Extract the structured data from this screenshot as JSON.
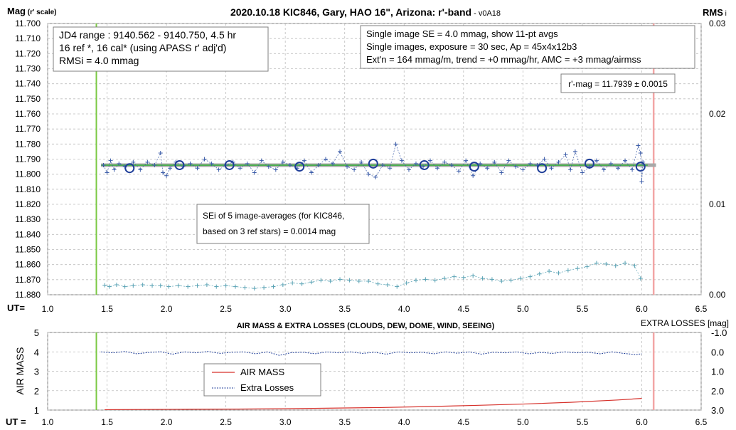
{
  "chart_data": [
    {
      "type": "scatter",
      "title": "2020.10.18 KIC846, Gary, HAO 16\", Arizona: r'-band",
      "version": "v0A18",
      "ylabel_main": "Mag",
      "ylabel_sub": "(r' scale)",
      "y2label_main": "RMS",
      "y2label_sub": "i",
      "xlabel": "UT=",
      "xlim": [
        1.0,
        6.5
      ],
      "x_ticks": [
        "1.0",
        "1.5",
        "2.0",
        "2.5",
        "3.0",
        "3.5",
        "4.0",
        "4.5",
        "5.0",
        "5.5",
        "6.0",
        "6.5"
      ],
      "ylim": [
        11.88,
        11.7
      ],
      "y_ticks": [
        "11.700",
        "11.710",
        "11.720",
        "11.730",
        "11.740",
        "11.750",
        "11.760",
        "11.770",
        "11.780",
        "11.790",
        "11.800",
        "11.810",
        "11.820",
        "11.830",
        "11.840",
        "11.850",
        "11.860",
        "11.870",
        "11.880"
      ],
      "y2lim": [
        0.0,
        0.03
      ],
      "y2_ticks": [
        "0.00",
        "0.01",
        "0.02",
        "0.03"
      ],
      "grid": true,
      "markers": {
        "start_ut": 1.41,
        "end_ut": 6.1,
        "start_color": "#7ac943",
        "end_color": "#f2a5a5"
      },
      "fit_line": {
        "x": [
          1.45,
          6.05
        ],
        "y": 11.794,
        "color": "#4caf50"
      },
      "reference_band": {
        "y": 11.794,
        "color": "#a8a8a8"
      },
      "info_box_left": [
        "JD4 range : 9140.562 - 9140.750,  4.5  hr",
        "16 ref *, 16 cal* (using APASS r' adj'd)",
        "RMSi = 4.0 mmag"
      ],
      "info_box_right": [
        "Single image SE = 4.0 mmag, show  11-pt avgs",
        "Single images, exposure = 30 sec, Ap = 45x4x12b3",
        "Ext'n = 164 mmag/m, trend =  +0 mmag/hr, AMC = +3 mmag/airmss"
      ],
      "result_box": "r'-mag = 11.7939 ± 0.0015",
      "sei_box": [
        "SEi of 5 image-averages (for KIC846,",
        "based on 3 ref stars) = 0.0014 mag"
      ],
      "series": [
        {
          "style": "averages",
          "color": "#1f3e99",
          "x": [
            1.69,
            2.11,
            2.53,
            3.12,
            3.74,
            4.17,
            4.59,
            5.16,
            5.56,
            5.99
          ],
          "y": [
            11.796,
            11.794,
            11.794,
            11.795,
            11.793,
            11.794,
            11.795,
            11.796,
            11.793,
            11.795
          ]
        },
        {
          "style": "single-image",
          "color": "#3a5ba8",
          "x": [
            1.47,
            1.5,
            1.53,
            1.56,
            1.6,
            1.65,
            1.72,
            1.78,
            1.84,
            1.9,
            1.95,
            1.97,
            2.0,
            2.03,
            2.08,
            2.14,
            2.2,
            2.26,
            2.32,
            2.38,
            2.44,
            2.5,
            2.56,
            2.62,
            2.68,
            2.74,
            2.8,
            2.86,
            2.92,
            2.98,
            3.04,
            3.1,
            3.16,
            3.22,
            3.28,
            3.34,
            3.4,
            3.46,
            3.52,
            3.58,
            3.64,
            3.7,
            3.76,
            3.82,
            3.88,
            3.93,
            3.98,
            4.04,
            4.1,
            4.16,
            4.22,
            4.28,
            4.34,
            4.4,
            4.46,
            4.52,
            4.58,
            4.64,
            4.7,
            4.76,
            4.82,
            4.88,
            4.94,
            5.0,
            5.06,
            5.12,
            5.18,
            5.24,
            5.3,
            5.36,
            5.4,
            5.44,
            5.5,
            5.56,
            5.62,
            5.68,
            5.74,
            5.8,
            5.86,
            5.92,
            5.97,
            5.99,
            6.0,
            6.01
          ],
          "y": [
            11.794,
            11.799,
            11.791,
            11.797,
            11.793,
            11.795,
            11.792,
            11.797,
            11.792,
            11.794,
            11.786,
            11.799,
            11.801,
            11.796,
            11.792,
            11.795,
            11.793,
            11.796,
            11.79,
            11.793,
            11.797,
            11.794,
            11.792,
            11.796,
            11.793,
            11.799,
            11.791,
            11.795,
            11.797,
            11.792,
            11.794,
            11.796,
            11.791,
            11.799,
            11.794,
            11.79,
            11.793,
            11.785,
            11.795,
            11.797,
            11.792,
            11.8,
            11.802,
            11.794,
            11.796,
            11.78,
            11.791,
            11.797,
            11.793,
            11.795,
            11.791,
            11.796,
            11.792,
            11.794,
            11.798,
            11.791,
            11.801,
            11.793,
            11.796,
            11.792,
            11.799,
            11.791,
            11.795,
            11.797,
            11.793,
            11.794,
            11.79,
            11.796,
            11.792,
            11.787,
            11.797,
            11.785,
            11.799,
            11.795,
            11.791,
            11.797,
            11.793,
            11.796,
            11.791,
            11.797,
            11.781,
            11.786,
            11.805,
            11.792
          ]
        },
        {
          "style": "rms",
          "color": "#5ba3b5",
          "x": [
            1.48,
            1.52,
            1.58,
            1.65,
            1.72,
            1.8,
            1.88,
            1.95,
            2.02,
            2.1,
            2.18,
            2.26,
            2.34,
            2.42,
            2.5,
            2.58,
            2.66,
            2.74,
            2.82,
            2.9,
            2.98,
            3.06,
            3.14,
            3.22,
            3.3,
            3.38,
            3.46,
            3.54,
            3.62,
            3.7,
            3.78,
            3.86,
            3.94,
            4.02,
            4.1,
            4.18,
            4.26,
            4.34,
            4.42,
            4.5,
            4.58,
            4.66,
            4.74,
            4.82,
            4.9,
            4.98,
            5.06,
            5.14,
            5.22,
            5.3,
            5.38,
            5.46,
            5.54,
            5.62,
            5.7,
            5.78,
            5.86,
            5.94,
            5.99
          ],
          "y": [
            0.00105,
            0.0009,
            0.0011,
            0.0009,
            0.001,
            0.0011,
            0.001,
            0.001,
            0.0009,
            0.001,
            0.0009,
            0.001,
            0.0011,
            0.0009,
            0.001,
            0.0009,
            0.0008,
            0.0007,
            0.0008,
            0.0009,
            0.0011,
            0.0013,
            0.0012,
            0.0014,
            0.0016,
            0.0015,
            0.0017,
            0.0016,
            0.0015,
            0.0015,
            0.0012,
            0.0011,
            0.0009,
            0.0013,
            0.0016,
            0.0017,
            0.0016,
            0.0018,
            0.002,
            0.0019,
            0.0021,
            0.0018,
            0.0017,
            0.0015,
            0.0016,
            0.0018,
            0.002,
            0.0023,
            0.0026,
            0.0024,
            0.0027,
            0.0029,
            0.0031,
            0.0035,
            0.0034,
            0.0032,
            0.0035,
            0.0032,
            0.0018
          ]
        }
      ]
    },
    {
      "type": "line",
      "title": "AIR MASS & EXTRA LOSSES (CLOUDS, DEW, DOME, WIND, SEEING)",
      "ylabel": "AIR MASS",
      "y2label": "EXTRA LOSSES [mag]",
      "xlabel": "UT =",
      "xlim": [
        1.0,
        6.5
      ],
      "x_ticks": [
        "1.0",
        "1.5",
        "2.0",
        "2.5",
        "3.0",
        "3.5",
        "4.0",
        "4.5",
        "5.0",
        "5.5",
        "6.0",
        "6.5"
      ],
      "ylim": [
        1,
        5
      ],
      "y_ticks": [
        "5",
        "4",
        "3",
        "2",
        "1"
      ],
      "y2lim": [
        3.0,
        -1.0
      ],
      "y2_ticks": [
        "-1.0",
        "0.0",
        "1.0",
        "2.0",
        "3.0"
      ],
      "markers": {
        "start_ut": 1.41,
        "end_ut": 6.1,
        "start_color": "#7ac943",
        "end_color": "#f2a5a5"
      },
      "legend": {
        "position": "center-left",
        "items": [
          "AIR MASS",
          "Extra Losses"
        ]
      },
      "series": [
        {
          "name": "AIR MASS",
          "color": "#d6312b",
          "x": [
            1.48,
            1.8,
            2.2,
            2.6,
            3.0,
            3.4,
            3.8,
            4.2,
            4.6,
            5.0,
            5.4,
            5.8,
            6.0
          ],
          "y": [
            1.02,
            1.03,
            1.04,
            1.05,
            1.07,
            1.1,
            1.13,
            1.18,
            1.24,
            1.31,
            1.4,
            1.52,
            1.6
          ]
        },
        {
          "name": "Extra Losses",
          "color": "#1f3e99",
          "x": [
            1.45,
            1.55,
            1.65,
            1.75,
            1.85,
            1.95,
            2.05,
            2.15,
            2.25,
            2.35,
            2.45,
            2.55,
            2.65,
            2.75,
            2.85,
            2.95,
            3.05,
            3.15,
            3.25,
            3.35,
            3.45,
            3.55,
            3.65,
            3.75,
            3.85,
            3.95,
            4.05,
            4.15,
            4.25,
            4.35,
            4.45,
            4.55,
            4.65,
            4.75,
            4.85,
            4.95,
            5.05,
            5.15,
            5.25,
            5.35,
            5.45,
            5.55,
            5.65,
            5.75,
            5.85,
            5.95,
            6.0
          ],
          "y": [
            0.0,
            0.05,
            -0.02,
            0.1,
            0.03,
            -0.01,
            0.12,
            0.0,
            0.05,
            -0.02,
            0.08,
            0.02,
            0.0,
            0.1,
            0.0,
            0.18,
            0.04,
            0.02,
            0.1,
            0.0,
            0.05,
            0.0,
            0.08,
            0.02,
            0.12,
            0.0,
            0.05,
            0.02,
            0.1,
            0.0,
            0.07,
            0.0,
            0.12,
            0.02,
            0.05,
            0.0,
            0.1,
            0.03,
            0.08,
            0.0,
            0.05,
            0.02,
            0.1,
            0.0,
            0.08,
            0.14,
            0.1
          ]
        }
      ]
    }
  ]
}
